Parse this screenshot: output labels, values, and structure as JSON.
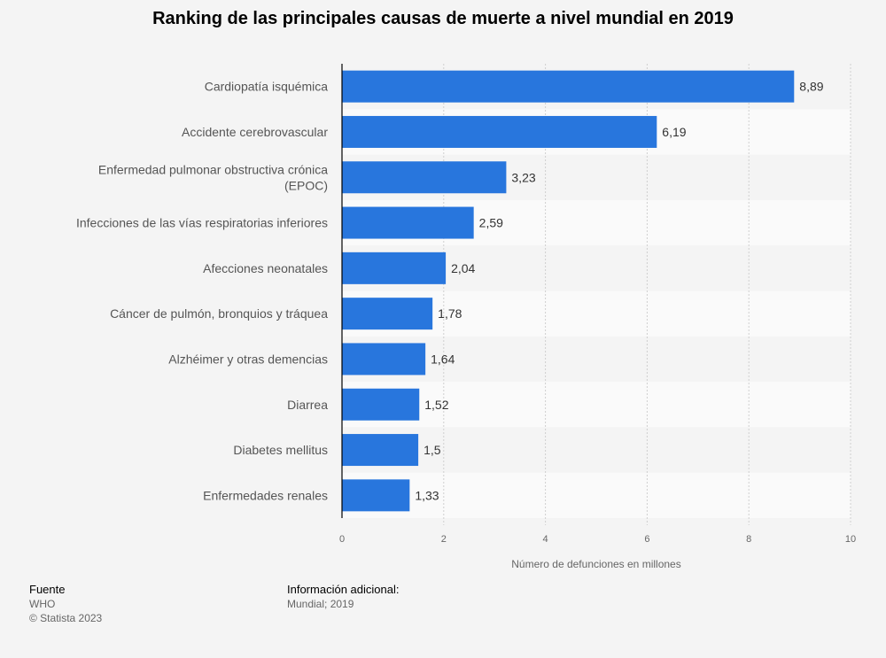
{
  "chart_data": {
    "type": "bar",
    "orientation": "horizontal",
    "title": "Ranking de las principales causas de muerte a nivel mundial en 2019",
    "xlabel": "Número de defunciones en millones",
    "ylabel": "",
    "xlim": [
      0,
      10
    ],
    "ticks": [
      "0",
      "2",
      "4",
      "6",
      "8",
      "10"
    ],
    "grid": true,
    "bar_color": "#2876dd",
    "categories": [
      [
        "Cardiopatía isquémica"
      ],
      [
        "Accidente cerebrovascular"
      ],
      [
        "Enfermedad pulmonar obstructiva crónica",
        "(EPOC)"
      ],
      [
        "Infecciones de las vías respiratorias inferiores"
      ],
      [
        "Afecciones neonatales"
      ],
      [
        "Cáncer de pulmón, bronquios y tráquea"
      ],
      [
        "Alzhéimer y otras demencias"
      ],
      [
        "Diarrea"
      ],
      [
        "Diabetes mellitus"
      ],
      [
        "Enfermedades renales"
      ]
    ],
    "values": [
      8.89,
      6.19,
      3.23,
      2.59,
      2.04,
      1.78,
      1.64,
      1.52,
      1.5,
      1.33
    ],
    "value_labels": [
      "8,89",
      "6,19",
      "3,23",
      "2,59",
      "2,04",
      "1,78",
      "1,64",
      "1,52",
      "1,5",
      "1,33"
    ]
  },
  "footer": {
    "source_heading": "Fuente",
    "source": "WHO",
    "copyright": "© Statista 2023",
    "info_heading": "Información adicional:",
    "info": "Mundial; 2019"
  }
}
